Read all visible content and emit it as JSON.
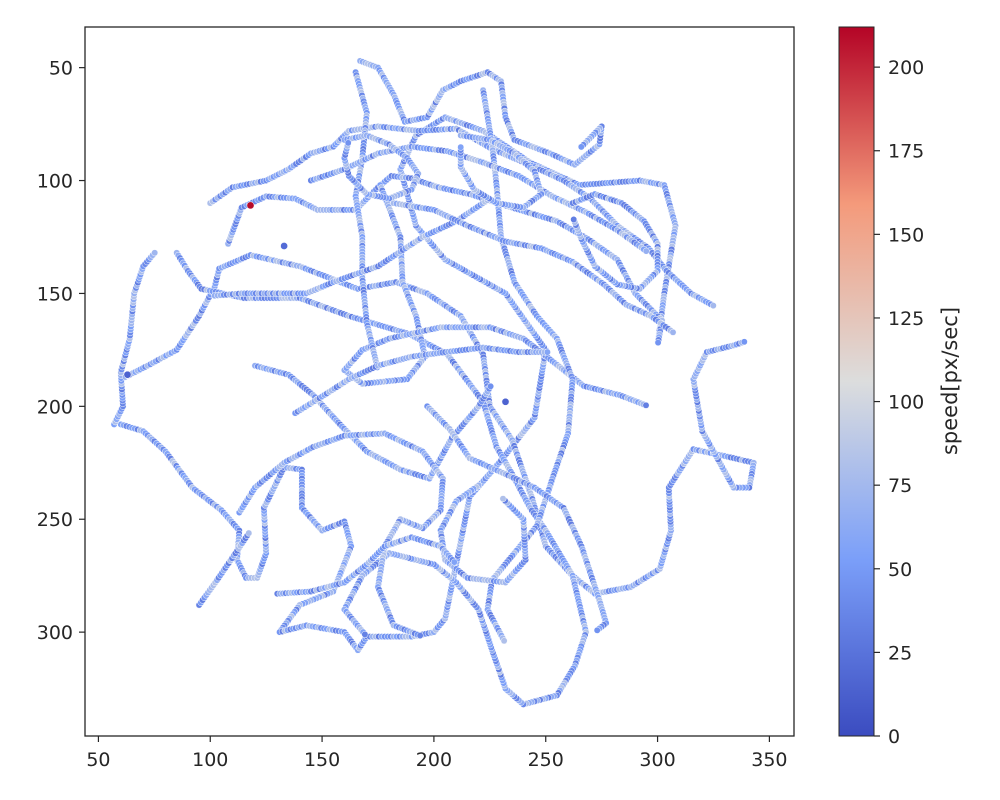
{
  "chart_data": {
    "type": "scatter",
    "title": "",
    "xlabel": "",
    "ylabel": "",
    "xlim": [
      44,
      361
    ],
    "ylim": [
      346,
      32
    ],
    "y_inverted": true,
    "grid": false,
    "x_ticks": [
      50,
      100,
      150,
      200,
      250,
      300,
      350
    ],
    "y_ticks": [
      50,
      100,
      150,
      200,
      250,
      300
    ],
    "colorbar": {
      "label": "speed[px/sec]",
      "cmap": "coolwarm",
      "range": [
        0,
        212
      ],
      "ticks": [
        0,
        25,
        50,
        75,
        100,
        125,
        150,
        175,
        200
      ]
    },
    "trajectories_description_note_free": true,
    "paths": [
      [
        [
          60,
          208
        ],
        [
          70,
          211
        ],
        [
          80,
          220
        ],
        [
          92,
          236
        ],
        [
          105,
          246
        ],
        [
          113,
          255
        ],
        [
          112,
          268
        ],
        [
          116,
          276
        ],
        [
          121,
          276
        ],
        [
          125,
          265
        ],
        [
          124,
          245
        ],
        [
          133,
          227
        ],
        [
          141,
          228
        ],
        [
          141,
          245
        ],
        [
          150,
          255
        ],
        [
          160,
          251
        ],
        [
          163,
          262
        ],
        [
          155,
          282
        ],
        [
          140,
          288
        ],
        [
          131,
          300
        ],
        [
          143,
          297
        ],
        [
          160,
          300
        ],
        [
          166,
          308
        ],
        [
          170,
          302
        ],
        [
          190,
          302
        ],
        [
          200,
          300
        ],
        [
          205,
          294
        ],
        [
          212,
          260
        ],
        [
          216,
          240
        ],
        [
          230,
          224
        ],
        [
          245,
          205
        ],
        [
          250,
          175
        ],
        [
          232,
          150
        ],
        [
          205,
          135
        ],
        [
          192,
          120
        ],
        [
          185,
          95
        ],
        [
          192,
          80
        ],
        [
          205,
          72
        ],
        [
          222,
          78
        ],
        [
          243,
          92
        ],
        [
          265,
          102
        ],
        [
          292,
          100
        ],
        [
          303,
          102
        ],
        [
          308,
          120
        ],
        [
          303,
          150
        ],
        [
          300,
          173
        ]
      ],
      [
        [
          57,
          208
        ],
        [
          61,
          200
        ],
        [
          60,
          185
        ],
        [
          64,
          170
        ],
        [
          66,
          150
        ],
        [
          70,
          138
        ],
        [
          76,
          131
        ]
      ],
      [
        [
          62,
          187
        ],
        [
          72,
          182
        ],
        [
          85,
          175
        ],
        [
          95,
          160
        ],
        [
          102,
          147
        ],
        [
          104,
          139
        ],
        [
          118,
          133
        ],
        [
          140,
          138
        ],
        [
          166,
          148
        ],
        [
          183,
          145
        ],
        [
          197,
          150
        ],
        [
          212,
          160
        ],
        [
          222,
          177
        ],
        [
          225,
          200
        ],
        [
          235,
          215
        ],
        [
          244,
          241
        ],
        [
          250,
          262
        ],
        [
          262,
          275
        ],
        [
          272,
          283
        ],
        [
          288,
          280
        ],
        [
          301,
          272
        ],
        [
          306,
          255
        ],
        [
          305,
          236
        ],
        [
          316,
          219
        ],
        [
          330,
          222
        ],
        [
          343,
          225
        ],
        [
          341,
          236
        ],
        [
          334,
          236
        ],
        [
          320,
          211
        ],
        [
          316,
          188
        ],
        [
          322,
          176
        ],
        [
          334,
          173
        ],
        [
          340,
          171
        ]
      ],
      [
        [
          85,
          132
        ],
        [
          90,
          140
        ],
        [
          96,
          148
        ],
        [
          115,
          152
        ],
        [
          140,
          152
        ],
        [
          162,
          160
        ],
        [
          189,
          168
        ],
        [
          206,
          177
        ],
        [
          222,
          198
        ],
        [
          228,
          218
        ],
        [
          235,
          230
        ],
        [
          243,
          245
        ],
        [
          250,
          255
        ],
        [
          262,
          275
        ],
        [
          268,
          300
        ],
        [
          263,
          315
        ],
        [
          255,
          328
        ],
        [
          240,
          332
        ],
        [
          232,
          325
        ],
        [
          226,
          308
        ],
        [
          220,
          290
        ],
        [
          210,
          278
        ],
        [
          200,
          270
        ],
        [
          180,
          265
        ],
        [
          168,
          275
        ],
        [
          160,
          290
        ],
        [
          170,
          302
        ]
      ],
      [
        [
          100,
          110
        ],
        [
          110,
          103
        ],
        [
          125,
          100
        ],
        [
          135,
          95
        ],
        [
          145,
          88
        ],
        [
          155,
          85
        ],
        [
          162,
          78
        ],
        [
          175,
          76
        ],
        [
          193,
          78
        ],
        [
          210,
          77
        ],
        [
          226,
          86
        ],
        [
          245,
          94
        ],
        [
          258,
          100
        ],
        [
          270,
          108
        ],
        [
          282,
          120
        ],
        [
          296,
          130
        ],
        [
          304,
          140
        ],
        [
          315,
          150
        ],
        [
          326,
          156
        ]
      ],
      [
        [
          108,
          128
        ],
        [
          114,
          112
        ],
        [
          125,
          107
        ],
        [
          138,
          108
        ],
        [
          148,
          113
        ],
        [
          165,
          113
        ],
        [
          175,
          103
        ],
        [
          181,
          98
        ],
        [
          190,
          99
        ],
        [
          202,
          103
        ],
        [
          216,
          106
        ],
        [
          235,
          112
        ],
        [
          255,
          118
        ],
        [
          269,
          126
        ],
        [
          282,
          135
        ],
        [
          290,
          150
        ],
        [
          302,
          162
        ],
        [
          300,
          173
        ]
      ],
      [
        [
          167,
          47
        ],
        [
          175,
          50
        ],
        [
          182,
          62
        ],
        [
          187,
          74
        ],
        [
          197,
          72
        ],
        [
          204,
          60
        ],
        [
          212,
          56
        ],
        [
          224,
          52
        ],
        [
          230,
          56
        ],
        [
          232,
          72
        ],
        [
          236,
          82
        ],
        [
          252,
          88
        ],
        [
          263,
          93
        ],
        [
          274,
          84
        ],
        [
          275,
          76
        ],
        [
          265,
          86
        ]
      ],
      [
        [
          176,
          102
        ],
        [
          185,
          125
        ],
        [
          186,
          145
        ],
        [
          192,
          160
        ],
        [
          196,
          178
        ],
        [
          188,
          188
        ],
        [
          168,
          190
        ],
        [
          160,
          184
        ],
        [
          168,
          175
        ],
        [
          180,
          170
        ],
        [
          203,
          165
        ],
        [
          225,
          165
        ],
        [
          240,
          170
        ],
        [
          253,
          180
        ],
        [
          267,
          191
        ],
        [
          283,
          195
        ],
        [
          296,
          200
        ]
      ],
      [
        [
          165,
          52
        ],
        [
          170,
          70
        ],
        [
          168,
          90
        ],
        [
          165,
          107
        ],
        [
          168,
          125
        ],
        [
          168,
          143
        ],
        [
          170,
          163
        ],
        [
          175,
          184
        ]
      ],
      [
        [
          102,
          151
        ],
        [
          114,
          150
        ],
        [
          128,
          150
        ],
        [
          143,
          150
        ],
        [
          155,
          145
        ],
        [
          175,
          138
        ],
        [
          195,
          125
        ],
        [
          210,
          118
        ],
        [
          225,
          108
        ]
      ],
      [
        [
          120,
          182
        ],
        [
          135,
          186
        ],
        [
          146,
          195
        ],
        [
          158,
          208
        ],
        [
          170,
          220
        ],
        [
          185,
          228
        ],
        [
          198,
          232
        ],
        [
          208,
          214
        ],
        [
          220,
          200
        ],
        [
          226,
          190
        ]
      ],
      [
        [
          113,
          247
        ],
        [
          120,
          236
        ],
        [
          133,
          225
        ],
        [
          146,
          218
        ],
        [
          160,
          213
        ],
        [
          178,
          212
        ],
        [
          195,
          220
        ],
        [
          204,
          232
        ],
        [
          203,
          246
        ],
        [
          195,
          254
        ],
        [
          185,
          250
        ],
        [
          178,
          262
        ],
        [
          175,
          280
        ],
        [
          182,
          297
        ],
        [
          195,
          302
        ]
      ],
      [
        [
          222,
          60
        ],
        [
          226,
          84
        ],
        [
          228,
          102
        ],
        [
          230,
          125
        ],
        [
          236,
          145
        ],
        [
          246,
          160
        ],
        [
          255,
          170
        ],
        [
          262,
          188
        ],
        [
          260,
          212
        ],
        [
          253,
          232
        ],
        [
          246,
          253
        ],
        [
          236,
          265
        ],
        [
          226,
          277
        ],
        [
          224,
          290
        ],
        [
          232,
          305
        ]
      ],
      [
        [
          197,
          200
        ],
        [
          207,
          210
        ],
        [
          216,
          223
        ],
        [
          232,
          230
        ],
        [
          245,
          236
        ],
        [
          258,
          245
        ],
        [
          266,
          262
        ],
        [
          274,
          286
        ],
        [
          277,
          296
        ],
        [
          272,
          300
        ]
      ],
      [
        [
          182,
          110
        ],
        [
          200,
          113
        ],
        [
          215,
          120
        ],
        [
          232,
          127
        ],
        [
          248,
          130
        ],
        [
          262,
          136
        ],
        [
          276,
          146
        ],
        [
          286,
          155
        ],
        [
          297,
          160
        ],
        [
          308,
          168
        ]
      ],
      [
        [
          145,
          100
        ],
        [
          160,
          95
        ],
        [
          175,
          88
        ],
        [
          190,
          85
        ],
        [
          206,
          87
        ],
        [
          222,
          92
        ],
        [
          238,
          98
        ],
        [
          253,
          107
        ],
        [
          268,
          114
        ],
        [
          282,
          122
        ],
        [
          296,
          132
        ]
      ],
      [
        [
          138,
          203
        ],
        [
          151,
          195
        ],
        [
          162,
          188
        ],
        [
          175,
          182
        ],
        [
          190,
          178
        ],
        [
          205,
          176
        ],
        [
          222,
          174
        ],
        [
          238,
          176
        ],
        [
          252,
          176
        ]
      ],
      [
        [
          95,
          288
        ],
        [
          103,
          277
        ],
        [
          112,
          264
        ],
        [
          118,
          255
        ]
      ],
      [
        [
          220,
          235
        ],
        [
          210,
          242
        ],
        [
          203,
          255
        ],
        [
          205,
          268
        ],
        [
          215,
          276
        ],
        [
          232,
          278
        ],
        [
          241,
          268
        ],
        [
          240,
          250
        ],
        [
          230,
          240
        ]
      ],
      [
        [
          130,
          283
        ],
        [
          145,
          282
        ],
        [
          160,
          278
        ],
        [
          170,
          270
        ],
        [
          178,
          262
        ],
        [
          190,
          258
        ],
        [
          203,
          262
        ],
        [
          210,
          270
        ]
      ],
      [
        [
          160,
          82
        ],
        [
          170,
          80
        ],
        [
          180,
          84
        ],
        [
          188,
          90
        ],
        [
          193,
          97
        ],
        [
          190,
          104
        ],
        [
          180,
          108
        ],
        [
          170,
          106
        ],
        [
          162,
          98
        ],
        [
          160,
          90
        ],
        [
          162,
          82
        ]
      ],
      [
        [
          212,
          80
        ],
        [
          225,
          82
        ],
        [
          236,
          88
        ],
        [
          245,
          96
        ],
        [
          248,
          106
        ],
        [
          240,
          112
        ],
        [
          228,
          110
        ],
        [
          218,
          104
        ],
        [
          212,
          94
        ],
        [
          212,
          84
        ]
      ],
      [
        [
          262,
          110
        ],
        [
          272,
          106
        ],
        [
          284,
          110
        ],
        [
          294,
          118
        ],
        [
          300,
          128
        ],
        [
          300,
          140
        ],
        [
          292,
          148
        ],
        [
          282,
          146
        ],
        [
          272,
          138
        ],
        [
          266,
          126
        ],
        [
          262,
          116
        ]
      ]
    ],
    "highlighted_points": [
      {
        "x": 118,
        "y": 111,
        "speed": 210
      },
      {
        "x": 63,
        "y": 186,
        "speed": 15
      },
      {
        "x": 133,
        "y": 129,
        "speed": 20
      },
      {
        "x": 232,
        "y": 198,
        "speed": 15
      }
    ]
  }
}
